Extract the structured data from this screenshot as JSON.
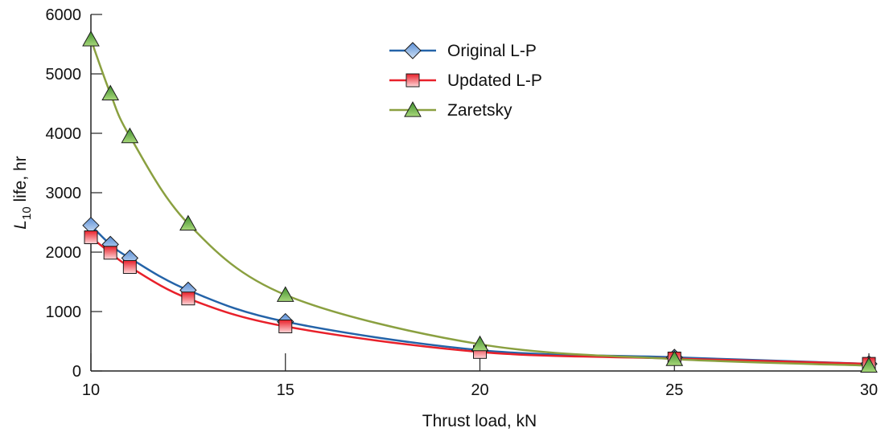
{
  "chart_data": {
    "type": "line",
    "xlabel": "Thrust load, kN",
    "ylabel_main": "L",
    "ylabel_sub": "10",
    "ylabel_rest": " life, hr",
    "xlim": [
      10,
      30
    ],
    "ylim": [
      0,
      6000
    ],
    "xticks": [
      10,
      15,
      20,
      25,
      30
    ],
    "yticks": [
      0,
      1000,
      2000,
      3000,
      4000,
      5000,
      6000
    ],
    "grid": false,
    "legend_position": "top-center",
    "series": [
      {
        "name": "Original L-P",
        "marker": "diamond",
        "color": "#2463a8",
        "x": [
          10,
          10.5,
          11,
          12.5,
          15,
          20,
          25,
          30
        ],
        "y": [
          2450,
          2130,
          1900,
          1360,
          830,
          350,
          230,
          120
        ]
      },
      {
        "name": "Updated L-P",
        "marker": "square",
        "color": "#e8202a",
        "x": [
          10,
          10.5,
          11,
          12.5,
          15,
          20,
          25,
          30
        ],
        "y": [
          2250,
          1990,
          1750,
          1220,
          750,
          320,
          210,
          120
        ]
      },
      {
        "name": "Zaretsky",
        "marker": "triangle",
        "color": "#8aa040",
        "x": [
          10,
          10.5,
          11,
          12.5,
          15,
          20,
          25,
          30
        ],
        "y": [
          5580,
          4670,
          3950,
          2480,
          1280,
          450,
          200,
          90
        ]
      }
    ]
  }
}
